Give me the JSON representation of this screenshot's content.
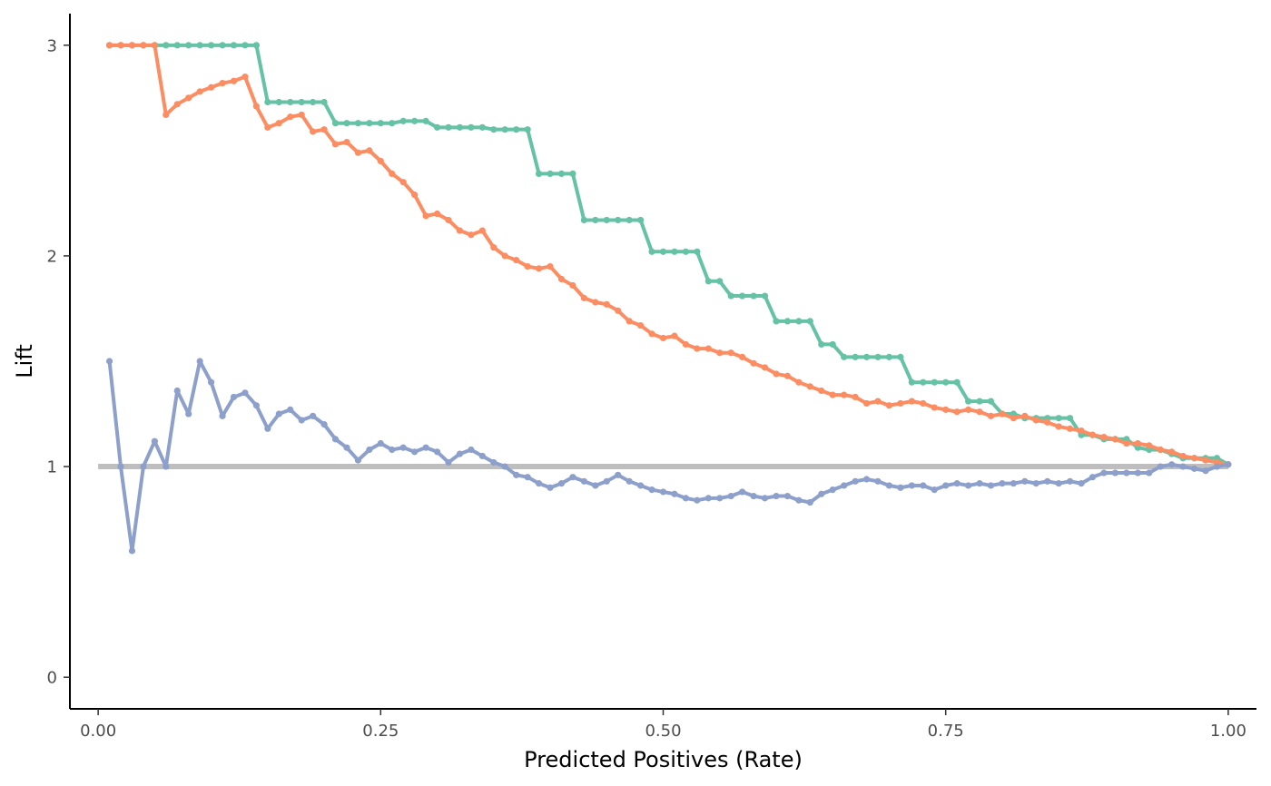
{
  "chart_data": {
    "type": "line",
    "title": "",
    "xlabel": "Predicted Positives (Rate)",
    "ylabel": "Lift",
    "xlim": [
      -0.025,
      1.025
    ],
    "ylim": [
      -0.15,
      3.15
    ],
    "x_ticks": [
      0.0,
      0.25,
      0.5,
      0.75,
      1.0
    ],
    "x_tick_labels": [
      "0.00",
      "0.25",
      "0.50",
      "0.75",
      "1.00"
    ],
    "y_ticks": [
      0,
      1,
      2,
      3
    ],
    "y_tick_labels": [
      "0",
      "1",
      "2",
      "3"
    ],
    "grid": false,
    "legend": "none",
    "reference_line": {
      "y": 1,
      "color": "#bebebe"
    },
    "series": [
      {
        "color": "#66c2a5",
        "x_start": 0.01,
        "x_step": 0.01,
        "values": [
          3.0,
          3.0,
          3.0,
          3.0,
          3.0,
          3.0,
          3.0,
          3.0,
          3.0,
          3.0,
          3.0,
          3.0,
          3.0,
          3.0,
          2.73,
          2.73,
          2.73,
          2.73,
          2.73,
          2.73,
          2.63,
          2.63,
          2.63,
          2.63,
          2.63,
          2.63,
          2.64,
          2.64,
          2.64,
          2.61,
          2.61,
          2.61,
          2.61,
          2.61,
          2.6,
          2.6,
          2.6,
          2.6,
          2.39,
          2.39,
          2.39,
          2.39,
          2.17,
          2.17,
          2.17,
          2.17,
          2.17,
          2.17,
          2.02,
          2.02,
          2.02,
          2.02,
          2.02,
          1.88,
          1.88,
          1.81,
          1.81,
          1.81,
          1.81,
          1.69,
          1.69,
          1.69,
          1.69,
          1.58,
          1.58,
          1.52,
          1.52,
          1.52,
          1.52,
          1.52,
          1.52,
          1.4,
          1.4,
          1.4,
          1.4,
          1.4,
          1.31,
          1.31,
          1.31,
          1.25,
          1.25,
          1.23,
          1.23,
          1.23,
          1.23,
          1.23,
          1.15,
          1.15,
          1.13,
          1.13,
          1.13,
          1.09,
          1.08,
          1.08,
          1.06,
          1.04,
          1.04,
          1.04,
          1.04,
          1.01
        ]
      },
      {
        "color": "#fc8d62",
        "x_start": 0.01,
        "x_step": 0.01,
        "values": [
          3.0,
          3.0,
          3.0,
          3.0,
          3.0,
          2.67,
          2.72,
          2.75,
          2.78,
          2.8,
          2.82,
          2.83,
          2.85,
          2.71,
          2.61,
          2.63,
          2.66,
          2.67,
          2.59,
          2.6,
          2.53,
          2.54,
          2.49,
          2.5,
          2.45,
          2.39,
          2.35,
          2.29,
          2.19,
          2.2,
          2.17,
          2.12,
          2.1,
          2.12,
          2.04,
          2.0,
          1.98,
          1.95,
          1.94,
          1.95,
          1.89,
          1.86,
          1.8,
          1.78,
          1.77,
          1.74,
          1.69,
          1.67,
          1.63,
          1.61,
          1.62,
          1.58,
          1.56,
          1.56,
          1.54,
          1.54,
          1.52,
          1.49,
          1.47,
          1.44,
          1.43,
          1.4,
          1.38,
          1.36,
          1.34,
          1.34,
          1.33,
          1.3,
          1.31,
          1.29,
          1.3,
          1.31,
          1.3,
          1.28,
          1.27,
          1.26,
          1.27,
          1.26,
          1.24,
          1.25,
          1.23,
          1.24,
          1.22,
          1.21,
          1.19,
          1.18,
          1.17,
          1.15,
          1.14,
          1.13,
          1.11,
          1.11,
          1.1,
          1.08,
          1.07,
          1.05,
          1.04,
          1.03,
          1.02,
          1.01
        ]
      },
      {
        "color": "#8da0cb",
        "x_start": 0.01,
        "x_step": 0.01,
        "values": [
          1.5,
          1.0,
          0.6,
          1.0,
          1.12,
          1.0,
          1.36,
          1.25,
          1.5,
          1.4,
          1.24,
          1.33,
          1.35,
          1.29,
          1.18,
          1.25,
          1.27,
          1.22,
          1.24,
          1.2,
          1.13,
          1.09,
          1.03,
          1.08,
          1.11,
          1.08,
          1.09,
          1.07,
          1.09,
          1.07,
          1.02,
          1.06,
          1.08,
          1.05,
          1.02,
          1.0,
          0.96,
          0.95,
          0.92,
          0.9,
          0.92,
          0.95,
          0.93,
          0.91,
          0.93,
          0.96,
          0.93,
          0.91,
          0.89,
          0.88,
          0.87,
          0.85,
          0.84,
          0.85,
          0.85,
          0.86,
          0.88,
          0.86,
          0.85,
          0.86,
          0.86,
          0.84,
          0.83,
          0.87,
          0.89,
          0.91,
          0.93,
          0.94,
          0.93,
          0.91,
          0.9,
          0.91,
          0.91,
          0.89,
          0.91,
          0.92,
          0.91,
          0.92,
          0.91,
          0.92,
          0.92,
          0.93,
          0.92,
          0.93,
          0.92,
          0.93,
          0.92,
          0.95,
          0.97,
          0.97,
          0.97,
          0.97,
          0.97,
          1.0,
          1.01,
          1.0,
          0.99,
          0.98,
          1.0,
          1.01
        ]
      }
    ]
  }
}
